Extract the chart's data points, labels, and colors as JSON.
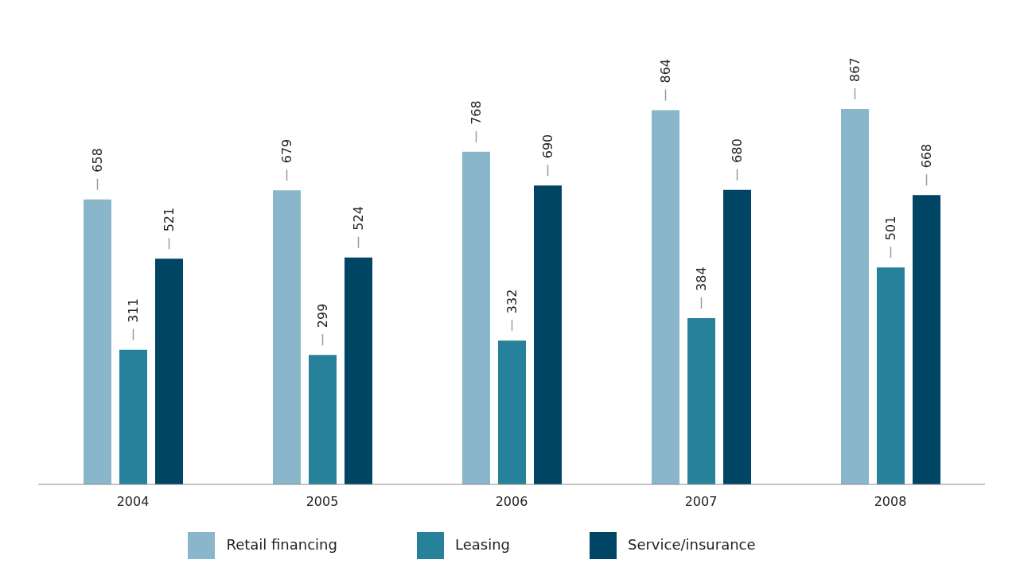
{
  "chart_data": {
    "type": "bar",
    "categories": [
      "2004",
      "2005",
      "2006",
      "2007",
      "2008"
    ],
    "series": [
      {
        "name": "Retail financing",
        "color": "#8ab6cb",
        "values": [
          658,
          679,
          768,
          864,
          867
        ]
      },
      {
        "name": "Leasing",
        "color": "#28819b",
        "values": [
          311,
          299,
          332,
          384,
          501
        ]
      },
      {
        "name": "Service/insurance",
        "color": "#004563",
        "values": [
          521,
          524,
          690,
          680,
          668
        ]
      }
    ],
    "data_labels": true,
    "legend": "bottom",
    "grid": false
  }
}
